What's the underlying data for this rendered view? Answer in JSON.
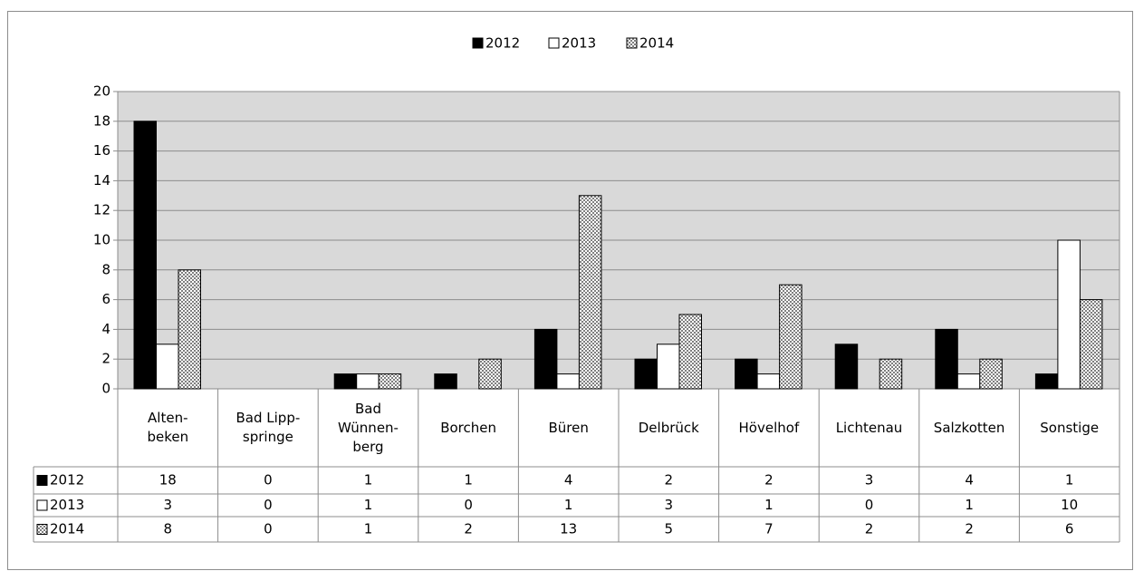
{
  "chart_data": {
    "type": "bar",
    "categories": [
      "Alten-\nbeken",
      "Bad Lipp-\nspringe",
      "Bad\nWünnen-\nberg",
      "Borchen",
      "Büren",
      "Delbrück",
      "Hövelhof",
      "Lichtenau",
      "Salzkotten",
      "Sonstige"
    ],
    "series": [
      {
        "name": "2012",
        "color": "#000000",
        "values": [
          18,
          0,
          1,
          1,
          4,
          2,
          2,
          3,
          4,
          1
        ]
      },
      {
        "name": "2013",
        "color": "#ffffff",
        "values": [
          3,
          0,
          1,
          0,
          1,
          3,
          1,
          0,
          1,
          10
        ]
      },
      {
        "name": "2014",
        "color": "#7f7f7f",
        "pattern": "checker",
        "values": [
          8,
          0,
          1,
          2,
          13,
          5,
          7,
          2,
          2,
          6
        ]
      }
    ],
    "ylim": [
      0,
      20
    ],
    "yticks": [
      0,
      2,
      4,
      6,
      8,
      10,
      12,
      14,
      16,
      18,
      20
    ],
    "grid": true,
    "legend": "top",
    "data_table": true
  }
}
